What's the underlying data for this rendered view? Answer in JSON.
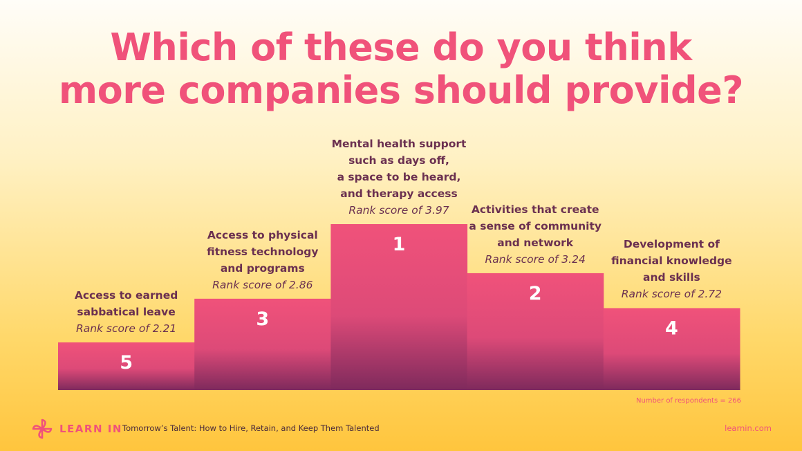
{
  "title": {
    "line1": "Which of these do you think",
    "line2": "more companies should provide?"
  },
  "chart_data": {
    "type": "bar",
    "categories": [
      "Access to earned\nsabbatical leave",
      "Access to physical\nfitness technology\nand programs",
      "Mental health support\nsuch as days off,\na space to be heard,\nand therapy access",
      "Activities that create\na sense of community\nand network",
      "Development of\nfinancial knowledge\nand skills"
    ],
    "values": [
      2.21,
      2.86,
      3.97,
      3.24,
      2.72
    ],
    "ranks": [
      "5",
      "3",
      "1",
      "2",
      "4"
    ],
    "score_labels": [
      "Rank score of 2.21",
      "Rank score of 2.86",
      "Rank score of 3.97",
      "Rank score of 3.24",
      "Rank score of 2.72"
    ],
    "ylim": [
      1.5,
      3.97
    ],
    "xlabel": "",
    "ylabel": "",
    "grid": false,
    "legend": "none",
    "colors": {
      "bar_top": "#f0527a",
      "bar_mid": "#dd4a78",
      "bar_bottom": "#7e2a5c"
    }
  },
  "footnote": "Number of respondents = 266",
  "footer": {
    "brand": "LEARN IN",
    "report": "Tomorrow’s Talent: How to Hire, Retain, and Keep Them Talented",
    "site": "learnin.com"
  },
  "icons": {
    "logo": "pinwheel-logo-icon"
  },
  "colors": {
    "accent": "#f0527a",
    "text_dark": "#6b3050"
  }
}
